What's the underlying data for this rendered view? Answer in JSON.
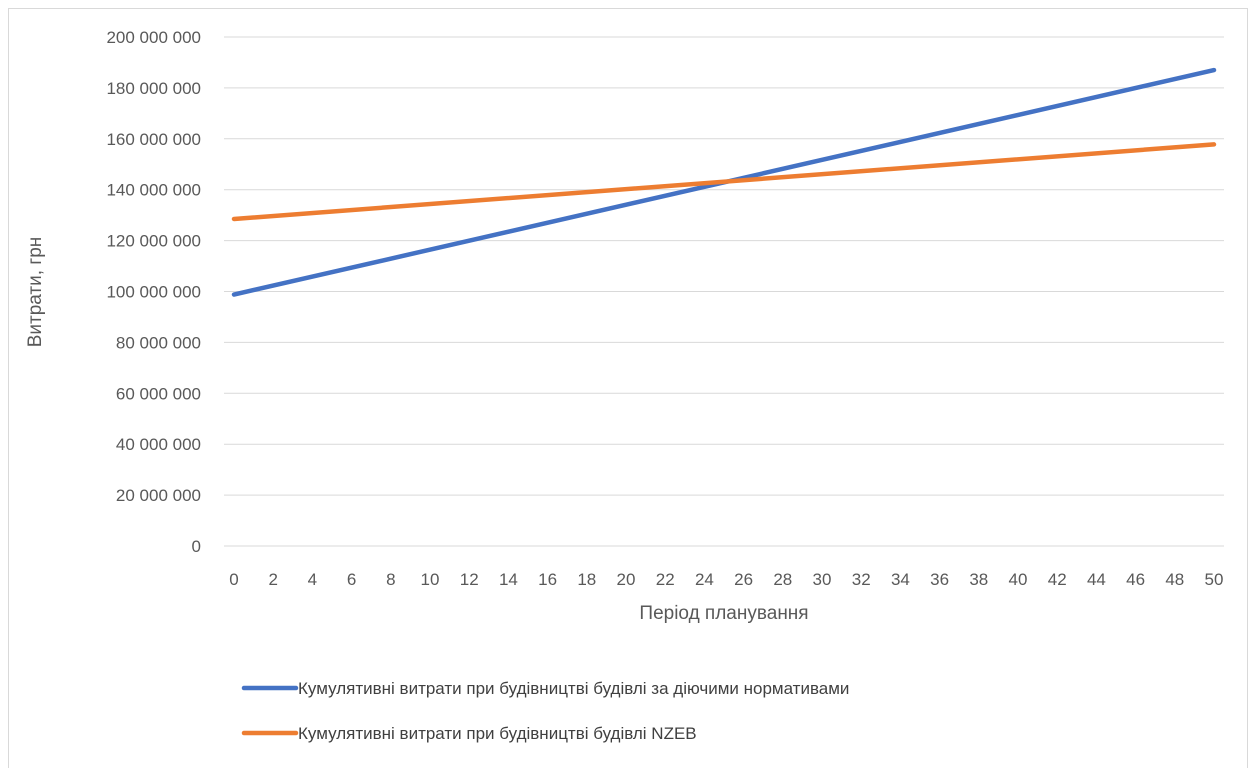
{
  "chart_data": {
    "type": "line",
    "title": "",
    "xlabel": "Період планування",
    "ylabel": "Витрати, грн",
    "x": [
      0,
      2,
      4,
      6,
      8,
      10,
      12,
      14,
      16,
      18,
      20,
      22,
      24,
      26,
      28,
      30,
      32,
      34,
      36,
      38,
      40,
      42,
      44,
      46,
      48,
      50
    ],
    "xticklabels": [
      "0",
      "2",
      "4",
      "6",
      "8",
      "10",
      "12",
      "14",
      "16",
      "18",
      "20",
      "22",
      "24",
      "26",
      "28",
      "30",
      "32",
      "34",
      "36",
      "38",
      "40",
      "42",
      "44",
      "46",
      "48",
      "50"
    ],
    "yticks": [
      0,
      20000000,
      40000000,
      60000000,
      80000000,
      100000000,
      120000000,
      140000000,
      160000000,
      180000000,
      200000000
    ],
    "yticklabels": [
      "0",
      "20 000 000",
      "40 000 000",
      "60 000 000",
      "80 000 000",
      "100 000 000",
      "120 000 000",
      "140 000 000",
      "160 000 000",
      "180 000 000",
      "200 000 000"
    ],
    "ylim": [
      0,
      200000000
    ],
    "xlim": [
      0,
      50
    ],
    "grid": true,
    "legend_position": "bottom",
    "series": [
      {
        "name": "Кумулятивні витрати при будівництві будівлі за діючими нормативами",
        "color": "#4472c4",
        "x": [
          0,
          50
        ],
        "values": [
          98800000,
          187000000
        ]
      },
      {
        "name": "Кумулятивні витрати при будівництві будівлі NZEB",
        "color": "#ed7d31",
        "x": [
          0,
          50
        ],
        "values": [
          128500000,
          157800000
        ]
      }
    ]
  }
}
